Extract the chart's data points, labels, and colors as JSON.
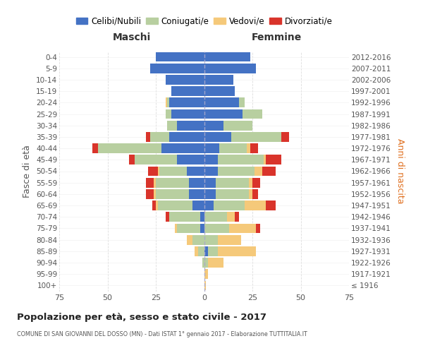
{
  "age_groups": [
    "100+",
    "95-99",
    "90-94",
    "85-89",
    "80-84",
    "75-79",
    "70-74",
    "65-69",
    "60-64",
    "55-59",
    "50-54",
    "45-49",
    "40-44",
    "35-39",
    "30-34",
    "25-29",
    "20-24",
    "15-19",
    "10-14",
    "5-9",
    "0-4"
  ],
  "birth_years": [
    "≤ 1916",
    "1917-1921",
    "1922-1926",
    "1927-1931",
    "1932-1936",
    "1937-1941",
    "1942-1946",
    "1947-1951",
    "1952-1956",
    "1957-1961",
    "1962-1966",
    "1967-1971",
    "1972-1976",
    "1977-1981",
    "1982-1986",
    "1987-1991",
    "1992-1996",
    "1997-2001",
    "2002-2006",
    "2007-2011",
    "2012-2016"
  ],
  "maschi": {
    "celibi": [
      0,
      0,
      0,
      0,
      0,
      2,
      2,
      6,
      8,
      8,
      9,
      14,
      22,
      18,
      14,
      17,
      18,
      17,
      20,
      28,
      25
    ],
    "coniugati": [
      0,
      0,
      1,
      3,
      6,
      12,
      16,
      18,
      17,
      17,
      14,
      22,
      33,
      10,
      5,
      3,
      1,
      0,
      0,
      0,
      0
    ],
    "vedovi": [
      0,
      0,
      0,
      2,
      3,
      1,
      0,
      1,
      1,
      1,
      1,
      0,
      0,
      0,
      0,
      0,
      1,
      0,
      0,
      0,
      0
    ],
    "divorziati": [
      0,
      0,
      0,
      0,
      0,
      0,
      2,
      2,
      4,
      4,
      5,
      3,
      3,
      2,
      0,
      0,
      0,
      0,
      0,
      0,
      0
    ]
  },
  "femmine": {
    "nubili": [
      0,
      0,
      0,
      2,
      0,
      0,
      0,
      5,
      6,
      6,
      7,
      7,
      8,
      14,
      10,
      20,
      18,
      16,
      15,
      27,
      24
    ],
    "coniugate": [
      0,
      0,
      2,
      5,
      7,
      13,
      12,
      16,
      17,
      17,
      19,
      24,
      14,
      26,
      15,
      10,
      3,
      0,
      0,
      0,
      0
    ],
    "vedove": [
      1,
      2,
      8,
      20,
      12,
      14,
      4,
      11,
      2,
      2,
      4,
      1,
      2,
      0,
      0,
      0,
      0,
      0,
      0,
      0,
      0
    ],
    "divorziate": [
      0,
      0,
      0,
      0,
      0,
      2,
      2,
      5,
      3,
      4,
      7,
      8,
      4,
      4,
      0,
      0,
      0,
      0,
      0,
      0,
      0
    ]
  },
  "colors": {
    "celibi": "#4472c4",
    "coniugati": "#b8cfa0",
    "vedovi": "#f5c97a",
    "divorziati": "#d9342b"
  },
  "xlim": 75,
  "title": "Popolazione per età, sesso e stato civile - 2017",
  "subtitle": "COMUNE DI SAN GIOVANNI DEL DOSSO (MN) - Dati ISTAT 1° gennaio 2017 - Elaborazione TUTTITALIA.IT",
  "ylabel_left": "Fasce di età",
  "ylabel_right": "Anni di nascita",
  "header_left": "Maschi",
  "header_right": "Femmine",
  "legend_labels": [
    "Celibi/Nubili",
    "Coniugati/e",
    "Vedovi/e",
    "Divorziati/e"
  ],
  "background_color": "#ffffff",
  "grid_color": "#cccccc"
}
